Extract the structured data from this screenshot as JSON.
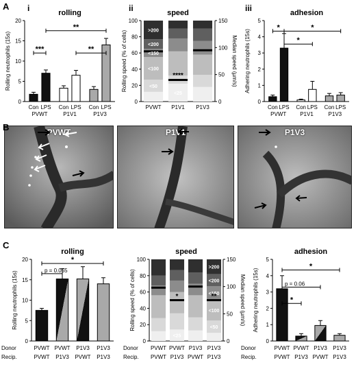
{
  "panel_labels": {
    "A": "A",
    "B": "B",
    "C": "C"
  },
  "sub_labels": {
    "i": "i",
    "ii": "ii",
    "iii": "iii"
  },
  "micro_panels": [
    "PVWT",
    "P1V1",
    "P1V3"
  ],
  "colors": {
    "black": "#111111",
    "gray": "#a9a9a9",
    "white": "#ffffff"
  },
  "chart_data": [
    {
      "id": "A-i",
      "type": "bar",
      "title": "rolling",
      "ylabel": "Rolling neutrophils (15s)",
      "ylim": [
        0,
        20
      ],
      "yticks": [
        0,
        5,
        10,
        15,
        20
      ],
      "bars": [
        {
          "label": "Con",
          "value": 1.8,
          "err": 0.5,
          "fill": "black"
        },
        {
          "label": "LPS",
          "value": 7.0,
          "err": 0.8,
          "fill": "black"
        },
        {
          "label": "Con",
          "value": 3.3,
          "err": 0.6,
          "fill": "white"
        },
        {
          "label": "LPS",
          "value": 6.5,
          "err": 1.2,
          "fill": "white"
        },
        {
          "label": "Con",
          "value": 3.0,
          "err": 0.7,
          "fill": "gray"
        },
        {
          "label": "LPS",
          "value": 14.0,
          "err": 1.6,
          "fill": "gray"
        }
      ],
      "groups": [
        "PVWT",
        "P1V1",
        "P1V3"
      ],
      "annotations": [
        {
          "text": "***",
          "from": 0,
          "to": 1,
          "y": 12.0
        },
        {
          "text": "**",
          "from": 1,
          "to": 5,
          "y": 17.5
        },
        {
          "text": "**",
          "from": 3,
          "to": 5,
          "y": 12.0
        }
      ]
    },
    {
      "id": "A-ii",
      "type": "stacked-bar",
      "title": "speed",
      "ylabel": "Rolling speed (% of cells)",
      "y2label": "Median speed (µm/s)",
      "ylim": [
        0,
        100
      ],
      "yticks": [
        0,
        20,
        40,
        60,
        80,
        100
      ],
      "y2lim": [
        0,
        150
      ],
      "y2ticks": [
        0,
        50,
        100,
        150
      ],
      "categories": [
        "PVWT",
        "P1V1",
        "P1V3"
      ],
      "bins": [
        "<25",
        "<50",
        "<100",
        "<150",
        "<200",
        ">200"
      ],
      "bin_colors": [
        "#efefef",
        "#d9d9d9",
        "#bdbdbd",
        "#8c8c8c",
        "#5f5f5f",
        "#2f2f2f"
      ],
      "stacks": [
        [
          12,
          15,
          28,
          10,
          12,
          23
        ],
        [
          22,
          10,
          30,
          16,
          12,
          10
        ],
        [
          18,
          15,
          25,
          17,
          15,
          10
        ]
      ],
      "median": [
        93,
        40,
        95
      ],
      "labels_shown": [
        {
          "col": 0,
          "bin": 1,
          "text": "<50"
        },
        {
          "col": 0,
          "bin": 2,
          "text": "<100"
        },
        {
          "col": 0,
          "bin": 3,
          "text": "<150"
        },
        {
          "col": 0,
          "bin": 4,
          "text": "<200"
        },
        {
          "col": 0,
          "bin": 5,
          "text": ">200"
        },
        {
          "col": 1,
          "bin": 0,
          "text": "<25"
        }
      ],
      "annotations": [
        {
          "text": "****",
          "col": 1,
          "y2": 48
        }
      ]
    },
    {
      "id": "A-iii",
      "type": "bar",
      "title": "adhesion",
      "ylabel": "Adhering neutrophils (15s)",
      "ylim": [
        0,
        5
      ],
      "yticks": [
        0,
        1,
        2,
        3,
        4,
        5
      ],
      "bars": [
        {
          "label": "Con",
          "value": 0.3,
          "err": 0.1,
          "fill": "black"
        },
        {
          "label": "LPS",
          "value": 3.3,
          "err": 0.9,
          "fill": "black"
        },
        {
          "label": "Con",
          "value": 0.1,
          "err": 0.05,
          "fill": "white"
        },
        {
          "label": "LPS",
          "value": 0.75,
          "err": 0.5,
          "fill": "white"
        },
        {
          "label": "Con",
          "value": 0.35,
          "err": 0.15,
          "fill": "gray"
        },
        {
          "label": "LPS",
          "value": 0.4,
          "err": 0.15,
          "fill": "gray"
        }
      ],
      "groups": [
        "PVWT",
        "P1V1",
        "P1V3"
      ],
      "annotations": [
        {
          "text": "*",
          "from": 0,
          "to": 1,
          "y": 4.35
        },
        {
          "text": "*",
          "from": 1,
          "to": 5,
          "y": 4.35
        },
        {
          "text": "*",
          "from": 1,
          "to": 3,
          "y": 3.55
        }
      ]
    },
    {
      "id": "C-i",
      "type": "bar",
      "title": "rolling",
      "ylabel": "Rolling neutrophils (15s)",
      "ylim": [
        0,
        20
      ],
      "yticks": [
        0,
        5,
        10,
        15,
        20
      ],
      "bars": [
        {
          "donor": "PVWT",
          "recip": "PVWT",
          "value": 7.5,
          "err": 0.5,
          "fill": "black"
        },
        {
          "donor": "PVWT",
          "recip": "P1V3",
          "value": 15.2,
          "err": 2.5,
          "fill": "black-gray"
        },
        {
          "donor": "P1V3",
          "recip": "PVWT",
          "value": 15.2,
          "err": 3.0,
          "fill": "gray-black"
        },
        {
          "donor": "P1V3",
          "recip": "P1V3",
          "value": 14.0,
          "err": 1.5,
          "fill": "gray"
        }
      ],
      "row_labels": [
        "Donor",
        "Recip."
      ],
      "annotations": [
        {
          "text": "p = 0.055",
          "from": 0,
          "to": 1,
          "y": 16.5
        },
        {
          "text": "*",
          "from": 0,
          "to": 3,
          "y": 19.0
        }
      ]
    },
    {
      "id": "C-ii",
      "type": "stacked-bar",
      "title": "speed",
      "ylabel": "Rolling speed (% of cells)",
      "y2label": "Median speed (µm/s)",
      "ylim": [
        0,
        100
      ],
      "yticks": [
        0,
        20,
        40,
        60,
        80,
        100
      ],
      "y2lim": [
        0,
        150
      ],
      "y2ticks": [
        0,
        50,
        100,
        150
      ],
      "donor": [
        "PVWT",
        "PVWT",
        "P1V3",
        "P1V3"
      ],
      "recip": [
        "PVWT",
        "P1V3",
        "PVWT",
        "P1V3"
      ],
      "bins": [
        "<25",
        "<50",
        "<100",
        "<150",
        "<200",
        ">200"
      ],
      "bin_colors": [
        "#efefef",
        "#d9d9d9",
        "#bdbdbd",
        "#8c8c8c",
        "#5f5f5f",
        "#2f2f2f"
      ],
      "stacks": [
        [
          12,
          16,
          28,
          12,
          12,
          20
        ],
        [
          14,
          20,
          26,
          14,
          13,
          13
        ],
        [
          13,
          16,
          27,
          14,
          14,
          16
        ],
        [
          10,
          15,
          26,
          16,
          15,
          18
        ]
      ],
      "median": [
        98,
        75,
        100,
        75
      ],
      "labels_shown": [
        {
          "col": 1,
          "bin": 0,
          "text": "<25"
        },
        {
          "col": 3,
          "bin": 1,
          "text": "<50"
        },
        {
          "col": 3,
          "bin": 2,
          "text": "<100"
        },
        {
          "col": 3,
          "bin": 3,
          "text": "<150"
        },
        {
          "col": 3,
          "bin": 4,
          "text": "<200"
        },
        {
          "col": 3,
          "bin": 5,
          "text": ">200"
        }
      ],
      "annotations": [
        {
          "text": "*",
          "col": 1,
          "y2": 82
        },
        {
          "text": "**",
          "col": 3,
          "y2": 82
        }
      ],
      "row_labels": [
        "Donor",
        "Recip."
      ]
    },
    {
      "id": "C-iii",
      "type": "bar",
      "title": "adhesion",
      "ylabel": "Adhering neutrophils (15s)",
      "ylim": [
        0,
        5
      ],
      "yticks": [
        0,
        1,
        2,
        3,
        4,
        5
      ],
      "bars": [
        {
          "donor": "PVWT",
          "recip": "PVWT",
          "value": 3.2,
          "err": 0.8,
          "fill": "black"
        },
        {
          "donor": "PVWT",
          "recip": "P1V3",
          "value": 0.3,
          "err": 0.15,
          "fill": "black-gray"
        },
        {
          "donor": "P1V3",
          "recip": "PVWT",
          "value": 0.95,
          "err": 0.3,
          "fill": "gray-black"
        },
        {
          "donor": "P1V3",
          "recip": "P1V3",
          "value": 0.35,
          "err": 0.1,
          "fill": "gray"
        }
      ],
      "row_labels": [
        "Donor",
        "Recip."
      ],
      "annotations": [
        {
          "text": "*",
          "from": 0,
          "to": 1,
          "y": 2.3
        },
        {
          "text": "p = 0.06",
          "from": 0,
          "to": 2,
          "y": 3.3
        },
        {
          "text": "*",
          "from": 0,
          "to": 3,
          "y": 4.35
        }
      ]
    }
  ]
}
